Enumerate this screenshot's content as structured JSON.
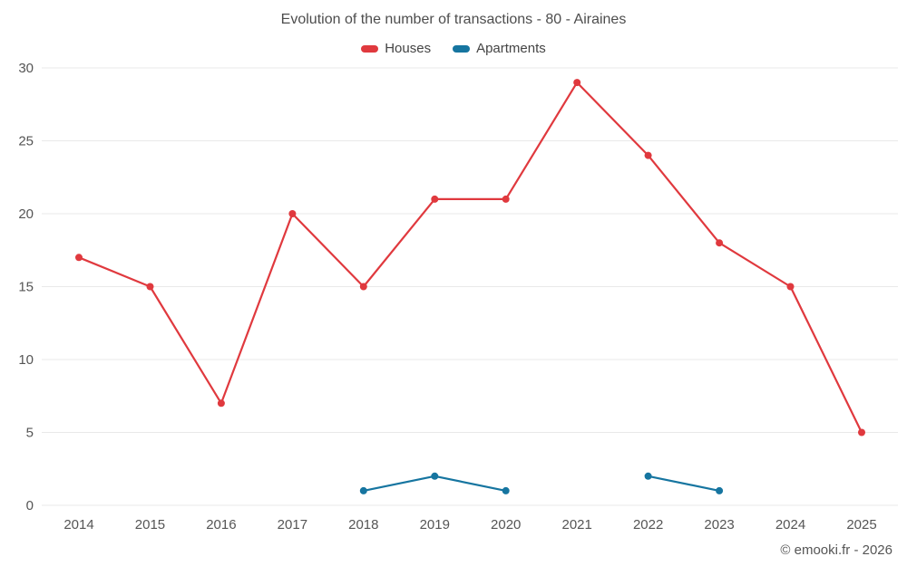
{
  "title": "Evolution of the number of transactions - 80 - Airaines",
  "footer": "© emooki.fr - 2026",
  "chart_data": {
    "type": "line",
    "title": "Evolution of the number of transactions - 80 - Airaines",
    "categories": [
      "2014",
      "2015",
      "2016",
      "2017",
      "2018",
      "2019",
      "2020",
      "2021",
      "2022",
      "2023",
      "2024",
      "2025"
    ],
    "series": [
      {
        "name": "Houses",
        "color": "#e0393e",
        "values": [
          17,
          15,
          7,
          20,
          15,
          21,
          21,
          29,
          24,
          18,
          15,
          5
        ]
      },
      {
        "name": "Apartments",
        "color": "#1675a0",
        "values": [
          null,
          null,
          null,
          null,
          1,
          2,
          1,
          null,
          2,
          1,
          null,
          null
        ]
      }
    ],
    "xlabel": "",
    "ylabel": "",
    "ylim": [
      0,
      30
    ],
    "yticks": [
      0,
      5,
      10,
      15,
      20,
      25,
      30
    ],
    "grid": "horizontal",
    "legend_position": "top",
    "text_color": "#555555",
    "grid_color": "#e9e9e9"
  }
}
